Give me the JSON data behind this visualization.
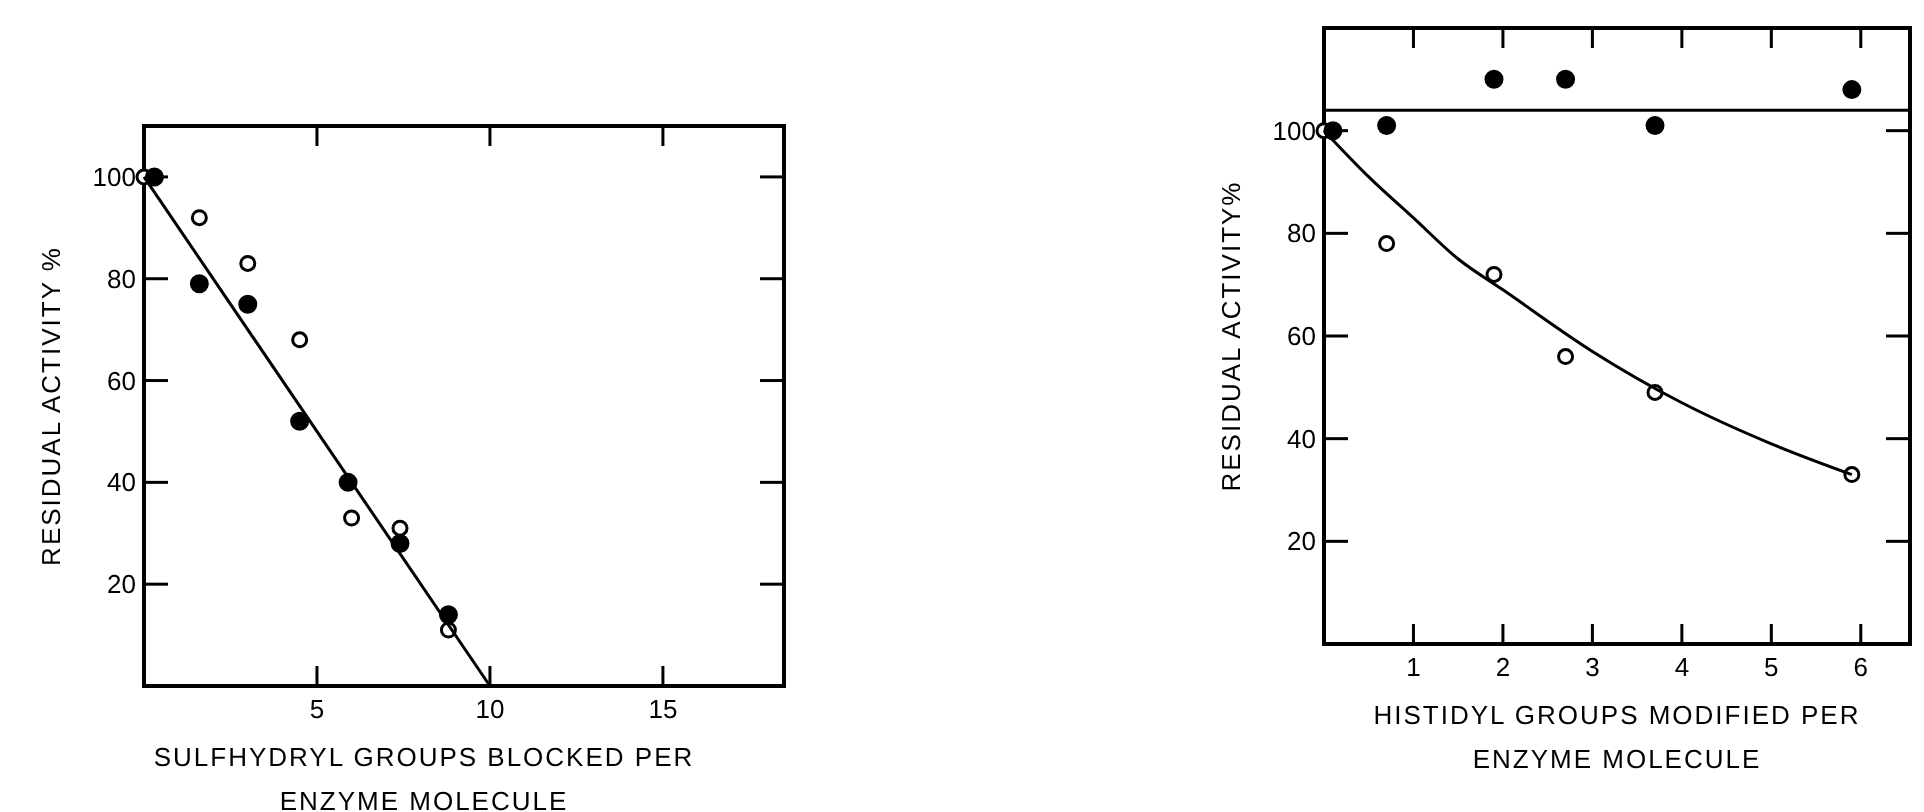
{
  "chart_data": [
    {
      "type": "scatter",
      "xlabel": "SULFHYDRYL GROUPS BLOCKED PER\nENZYME MOLECULE",
      "ylabel": "RESIDUAL ACTIVITY %",
      "xlim": [
        0,
        18.5
      ],
      "ylim": [
        0,
        110
      ],
      "xticks": [
        5,
        10,
        15
      ],
      "yticks": [
        20,
        40,
        60,
        80,
        100
      ],
      "grid": false,
      "series": [
        {
          "color": "#000000",
          "marker": "circle-open",
          "x": [
            0,
            1.6,
            3.0,
            4.5,
            6.0,
            7.4,
            8.8
          ],
          "values": [
            100,
            92,
            83,
            68,
            33,
            31,
            11
          ]
        },
        {
          "color": "#000000",
          "marker": "circle",
          "x": [
            0.3,
            1.6,
            3.0,
            4.5,
            5.9,
            7.4,
            8.8
          ],
          "values": [
            100,
            79,
            75,
            52,
            40,
            28,
            14
          ]
        },
        {
          "type": "line",
          "color": "#000000",
          "x": [
            0,
            10
          ],
          "values": [
            100,
            0
          ]
        }
      ]
    },
    {
      "type": "scatter",
      "xlabel": "HISTIDYL GROUPS MODIFIED PER\nENZYME MOLECULE",
      "ylabel": "RESIDUAL ACTIVITY%",
      "xlim": [
        0,
        6.55
      ],
      "ylim": [
        0,
        120
      ],
      "xticks": [
        1,
        2,
        3,
        4,
        5,
        6
      ],
      "yticks": [
        20,
        40,
        60,
        80,
        100
      ],
      "grid": false,
      "ref_lines": [
        {
          "axis": "y",
          "value": 104
        }
      ],
      "series": [
        {
          "color": "#000000",
          "marker": "circle-open",
          "x": [
            0,
            0.7,
            1.9,
            2.7,
            3.7,
            5.9
          ],
          "values": [
            100,
            78,
            72,
            56,
            49,
            33
          ]
        },
        {
          "color": "#000000",
          "marker": "circle",
          "x": [
            0.1,
            0.7,
            1.9,
            2.7,
            3.7,
            5.9
          ],
          "values": [
            100,
            101,
            110,
            110,
            101,
            108
          ]
        },
        {
          "type": "line",
          "color": "#000000",
          "x": [
            0,
            0.5,
            1,
            1.5,
            2,
            3,
            4,
            5,
            5.9
          ],
          "values": [
            100,
            91,
            83,
            75,
            69,
            57,
            47,
            39,
            33
          ]
        }
      ]
    }
  ]
}
